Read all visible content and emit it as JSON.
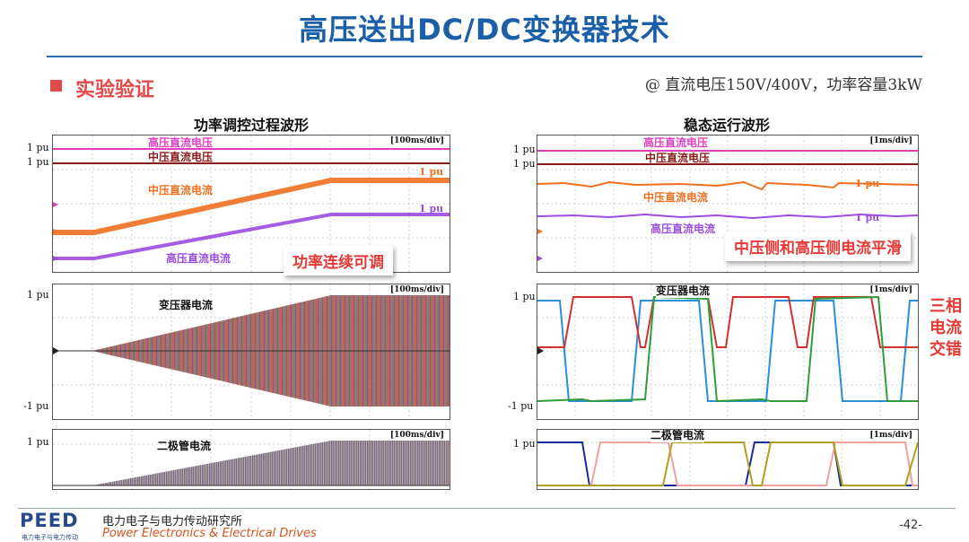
{
  "title": "高压送出DC/DC变换器技术",
  "section": {
    "label": "实验验证"
  },
  "conditions": "@ 直流电压150V/400V，功率容量3kW",
  "left": {
    "title": "功率调控过程波形",
    "voltage_panel": {
      "scale": "[100ms/div]",
      "axis_top": "1 pu",
      "axis_second": "1 pu",
      "labels": {
        "hv_voltage": "高压直流电压",
        "mv_voltage": "中压直流电压",
        "mv_current": "中压直流电流",
        "hv_current": "高压直流电流"
      },
      "current_note_1": "1 pu",
      "current_note_2": "1 pu",
      "callout": "功率连续可调"
    },
    "transformer_panel": {
      "scale": "[100ms/div]",
      "label": "变压器电流",
      "axis_top": "1 pu",
      "axis_bottom": "-1 pu"
    },
    "diode_panel": {
      "scale": "[100ms/div]",
      "label": "二极管电流",
      "axis_top": "1 pu"
    }
  },
  "right": {
    "title": "稳态运行波形",
    "voltage_panel": {
      "scale": "[1ms/div]",
      "axis_top": "1 pu",
      "axis_second": "1 pu",
      "labels": {
        "hv_voltage": "高压直流电压",
        "mv_voltage": "中压直流电压",
        "mv_current": "中压直流电流",
        "hv_current": "高压直流电流"
      },
      "current_note_1": "1 pu",
      "current_note_2": "1 pu",
      "callout": "中压侧和高压侧电流平滑"
    },
    "transformer_panel": {
      "scale": "[1ms/div]",
      "label": "变压器电流",
      "axis_top": "1 pu",
      "axis_bottom": "-1 pu",
      "side_note": "三相\n电流\n交错"
    },
    "diode_panel": {
      "scale": "[1ms/div]",
      "label": "二极管电流",
      "axis_top": "1 pu"
    }
  },
  "footer": {
    "logo": "PEED",
    "logo_small": "电力电子与电力传动",
    "org_cn": "电力电子与电力传动研究所",
    "org_en": "Power Electronics & Electrical Drives",
    "page": "-42-"
  },
  "colors": {
    "title": "#1a5fa8",
    "accent_red": "#e53935",
    "hv_voltage": "#e040c0",
    "mv_voltage": "#8b1a1a",
    "mv_current": "#f07020",
    "hv_current": "#9b4de0",
    "phase_a": "#2a8fd6",
    "phase_b": "#d32f2f",
    "phase_c": "#2e9e3a",
    "diode_1": "#1a2a9e",
    "diode_2": "#f0a0a0",
    "diode_3": "#b0a020"
  }
}
